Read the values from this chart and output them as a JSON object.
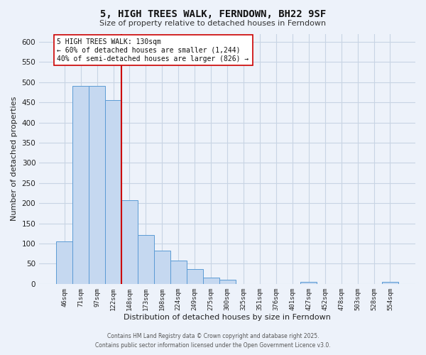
{
  "title": "5, HIGH TREES WALK, FERNDOWN, BH22 9SF",
  "subtitle": "Size of property relative to detached houses in Ferndown",
  "xlabel": "Distribution of detached houses by size in Ferndown",
  "ylabel": "Number of detached properties",
  "bar_labels": [
    "46sqm",
    "71sqm",
    "97sqm",
    "122sqm",
    "148sqm",
    "173sqm",
    "198sqm",
    "224sqm",
    "249sqm",
    "275sqm",
    "300sqm",
    "325sqm",
    "351sqm",
    "376sqm",
    "401sqm",
    "427sqm",
    "452sqm",
    "478sqm",
    "503sqm",
    "528sqm",
    "554sqm"
  ],
  "bar_values": [
    105,
    490,
    490,
    455,
    207,
    122,
    83,
    58,
    37,
    15,
    10,
    0,
    0,
    0,
    0,
    5,
    0,
    0,
    0,
    0,
    5
  ],
  "bar_color": "#c5d8f0",
  "bar_edge_color": "#5b9bd5",
  "grid_color": "#c8d4e4",
  "background_color": "#edf2fa",
  "vline_x": 3.5,
  "vline_color": "#cc0000",
  "annotation_line1": "5 HIGH TREES WALK: 130sqm",
  "annotation_line2": "← 60% of detached houses are smaller (1,244)",
  "annotation_line3": "40% of semi-detached houses are larger (826) →",
  "annotation_box_color": "#ffffff",
  "annotation_box_edge": "#cc0000",
  "ylim": [
    0,
    620
  ],
  "yticks": [
    0,
    50,
    100,
    150,
    200,
    250,
    300,
    350,
    400,
    450,
    500,
    550,
    600
  ],
  "footer_line1": "Contains HM Land Registry data © Crown copyright and database right 2025.",
  "footer_line2": "Contains public sector information licensed under the Open Government Licence v3.0."
}
